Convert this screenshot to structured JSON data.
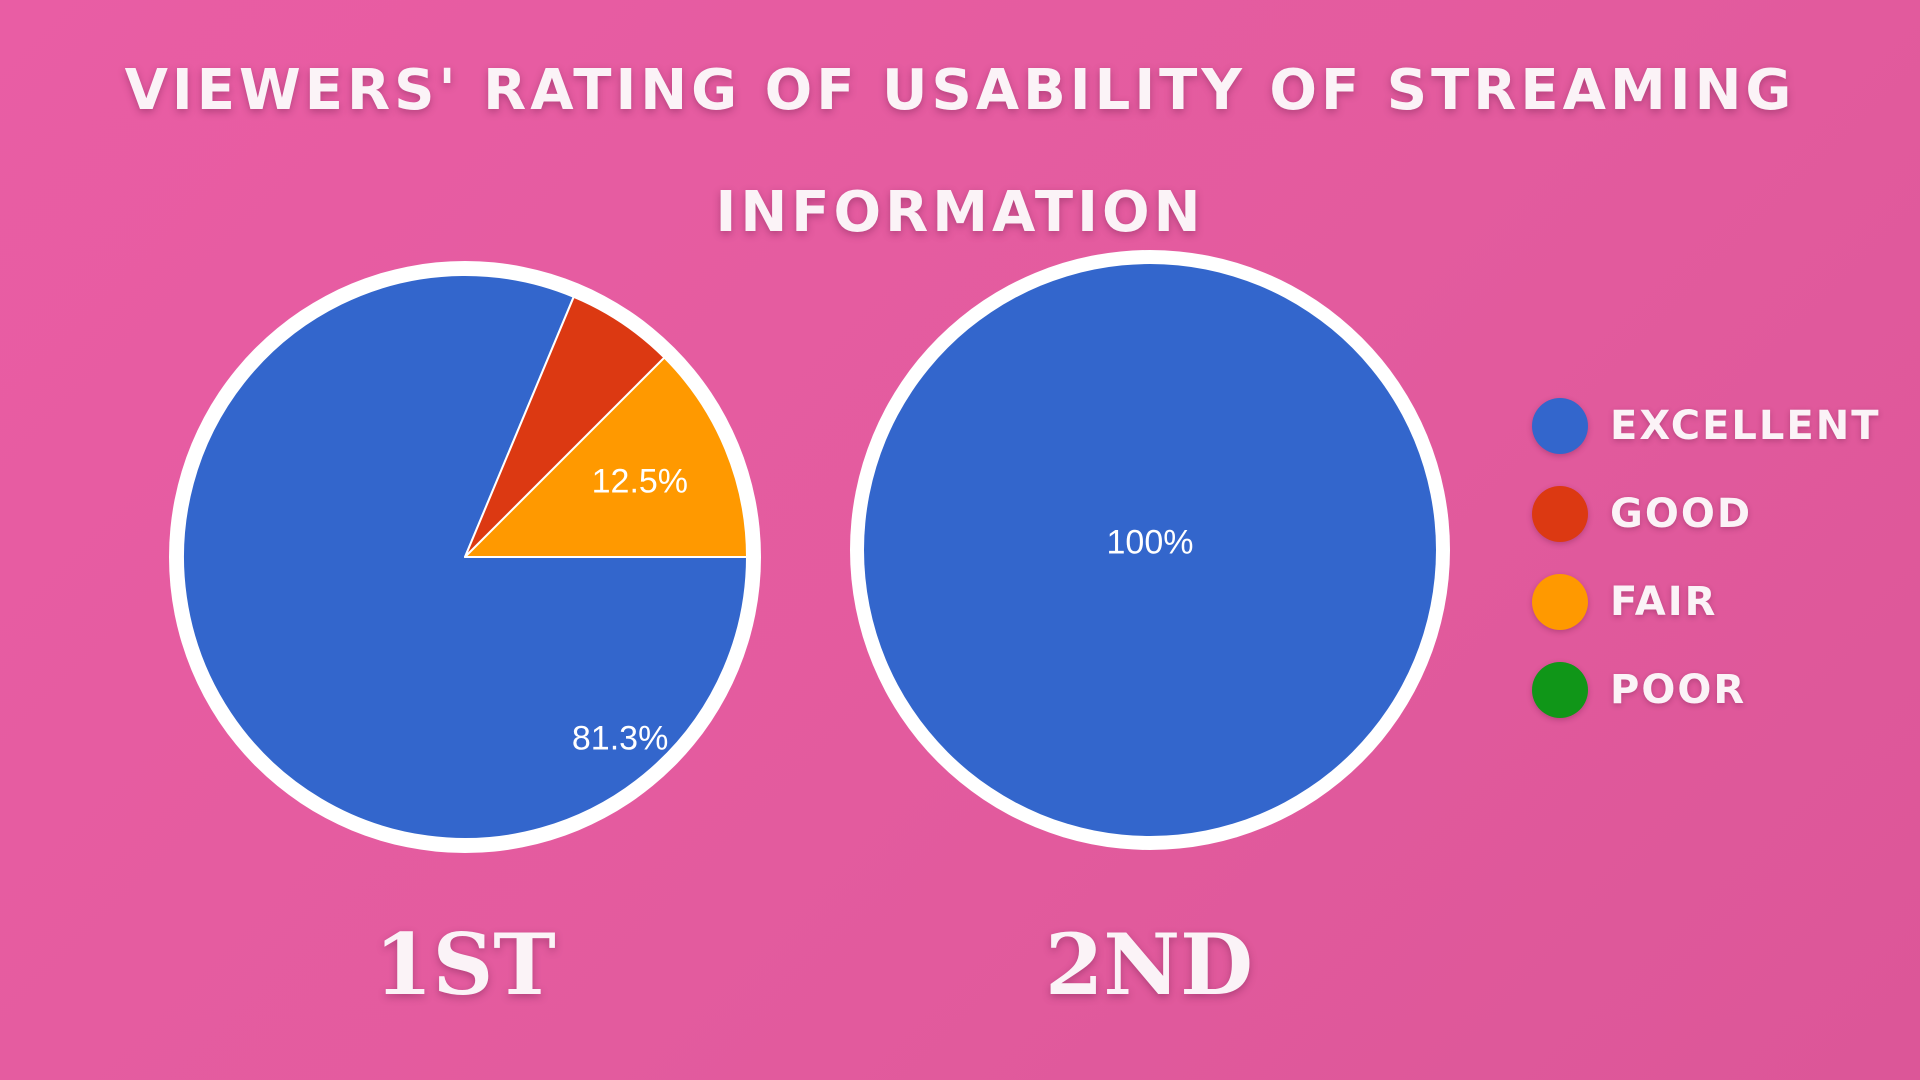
{
  "title": "VIEWERS' RATING OF USABILITY OF STREAMING INFORMATION",
  "legend": [
    {
      "label": "EXCELLENT",
      "color": "#3366cc"
    },
    {
      "label": "GOOD",
      "color": "#dc3912"
    },
    {
      "label": "FAIR",
      "color": "#ff9900"
    },
    {
      "label": "POOR",
      "color": "#109618"
    }
  ],
  "chart_data": [
    {
      "type": "pie",
      "caption": "1ST",
      "categories": [
        "EXCELLENT",
        "GOOD",
        "FAIR",
        "POOR"
      ],
      "values": [
        81.3,
        6.2,
        12.5,
        0
      ],
      "data_labels": [
        "81.3%",
        "",
        "12.5%",
        ""
      ],
      "colors": [
        "#3366cc",
        "#dc3912",
        "#ff9900",
        "#109618"
      ]
    },
    {
      "type": "pie",
      "caption": "2ND",
      "categories": [
        "EXCELLENT",
        "GOOD",
        "FAIR",
        "POOR"
      ],
      "values": [
        100,
        0,
        0,
        0
      ],
      "data_labels": [
        "100%",
        "",
        "",
        ""
      ],
      "colors": [
        "#3366cc",
        "#dc3912",
        "#ff9900",
        "#109618"
      ]
    }
  ]
}
